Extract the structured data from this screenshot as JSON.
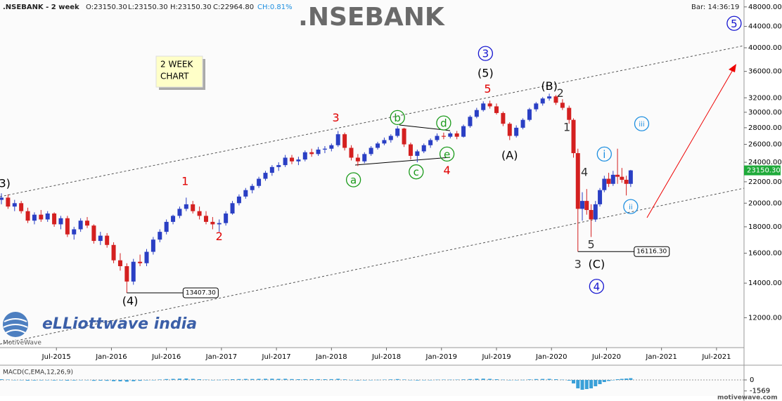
{
  "header": {
    "symbol": ".NSEBANK - 2 week",
    "open": "O:23150.30",
    "low": "L:23150.30",
    "high": "H:23150.30",
    "close": "C:22964.80",
    "change": "CH:0.81%",
    "bar_time": "Bar: 14:36:19"
  },
  "note_box": {
    "line1": "2 WEEK",
    "line2": "CHART"
  },
  "logo": {
    "brand": "eLLiottwave india",
    "platform": "MotiveWave",
    "site": "motivewave.com"
  },
  "chart_data": {
    "type": "candlestick",
    "title": ".NSEBANK",
    "log_y": true,
    "up_color": "#2a3fc4",
    "down_color": "#d42020",
    "x": [
      2015.0,
      2015.06,
      2015.12,
      2015.18,
      2015.24,
      2015.3,
      2015.36,
      2015.42,
      2015.48,
      2015.54,
      2015.6,
      2015.66,
      2015.72,
      2015.78,
      2015.84,
      2015.9,
      2015.96,
      2016.02,
      2016.08,
      2016.14,
      2016.2,
      2016.26,
      2016.32,
      2016.38,
      2016.44,
      2016.5,
      2016.56,
      2016.62,
      2016.68,
      2016.74,
      2016.8,
      2016.86,
      2016.92,
      2016.98,
      2017.04,
      2017.1,
      2017.16,
      2017.22,
      2017.28,
      2017.34,
      2017.4,
      2017.46,
      2017.52,
      2017.58,
      2017.64,
      2017.7,
      2017.76,
      2017.82,
      2017.88,
      2017.94,
      2018.0,
      2018.06,
      2018.12,
      2018.18,
      2018.24,
      2018.3,
      2018.36,
      2018.42,
      2018.48,
      2018.54,
      2018.6,
      2018.66,
      2018.72,
      2018.78,
      2018.84,
      2018.9,
      2018.96,
      2019.02,
      2019.08,
      2019.14,
      2019.2,
      2019.26,
      2019.32,
      2019.38,
      2019.44,
      2019.5,
      2019.56,
      2019.62,
      2019.68,
      2019.74,
      2019.8,
      2019.86,
      2019.92,
      2019.98,
      2020.04,
      2020.1,
      2020.16,
      2020.2,
      2020.24,
      2020.28,
      2020.32,
      2020.36,
      2020.4,
      2020.44,
      2020.48,
      2020.52,
      2020.56,
      2020.6,
      2020.64,
      2020.68,
      2020.72
    ],
    "open": [
      20300,
      20500,
      19700,
      20000,
      19300,
      18500,
      19000,
      18600,
      19100,
      18200,
      18700,
      17400,
      17800,
      18500,
      18100,
      16900,
      17300,
      16600,
      15500,
      15100,
      14100,
      15400,
      15300,
      16100,
      17000,
      17600,
      18400,
      18900,
      19500,
      19900,
      19300,
      18900,
      18400,
      18200,
      18300,
      19100,
      20000,
      20600,
      21200,
      21600,
      22300,
      22900,
      23500,
      23700,
      24500,
      24100,
      24300,
      25100,
      24900,
      25400,
      25500,
      25900,
      27200,
      25600,
      24500,
      24100,
      24900,
      25600,
      26100,
      26500,
      27000,
      27900,
      26000,
      24700,
      25200,
      25900,
      26500,
      27000,
      26900,
      27300,
      26900,
      28200,
      29400,
      30300,
      31200,
      30800,
      29900,
      28500,
      27000,
      28000,
      29000,
      30400,
      31200,
      31900,
      32200,
      31300,
      30600,
      29000,
      25000,
      19500,
      20200,
      19400,
      18600,
      19900,
      21200,
      22300,
      21800,
      22700,
      22500,
      22200,
      21800
    ],
    "high": [
      20900,
      20800,
      20300,
      20200,
      19600,
      19200,
      19400,
      19300,
      19200,
      18900,
      18900,
      18000,
      18700,
      18800,
      18200,
      17600,
      17500,
      16800,
      16000,
      15300,
      15600,
      15900,
      16300,
      17200,
      17800,
      18600,
      19000,
      19700,
      20500,
      20200,
      19700,
      19300,
      18800,
      18600,
      19300,
      20200,
      20800,
      21400,
      21800,
      22500,
      23100,
      23700,
      24000,
      24800,
      24800,
      24600,
      25300,
      25500,
      25700,
      25800,
      26100,
      27600,
      27400,
      25900,
      24900,
      25100,
      25800,
      26300,
      26800,
      27200,
      28200,
      28000,
      26200,
      25400,
      26100,
      26700,
      27300,
      27400,
      27500,
      27600,
      28400,
      29600,
      30600,
      31500,
      31600,
      31200,
      30100,
      28700,
      28300,
      29200,
      30600,
      31400,
      32100,
      32600,
      32400,
      31800,
      30900,
      29200,
      25500,
      21000,
      21300,
      19900,
      20200,
      21400,
      22600,
      22900,
      23100,
      25500,
      23400,
      22600,
      23200
    ],
    "low": [
      19900,
      19500,
      19300,
      19100,
      18300,
      18200,
      18400,
      18400,
      18000,
      17800,
      17200,
      17000,
      17600,
      17900,
      16700,
      16600,
      16400,
      15300,
      14800,
      13407.3,
      13900,
      15100,
      15100,
      15900,
      16800,
      17400,
      18200,
      18700,
      19300,
      19100,
      18600,
      18200,
      17800,
      17600,
      18100,
      19000,
      19800,
      20400,
      20900,
      21400,
      22100,
      22600,
      23100,
      23500,
      23800,
      23700,
      24100,
      24600,
      24700,
      25000,
      25200,
      25700,
      25300,
      24200,
      23600,
      23900,
      24700,
      25400,
      25900,
      26200,
      26800,
      25700,
      24300,
      24000,
      25000,
      25600,
      26300,
      26600,
      26700,
      26600,
      26800,
      28000,
      29200,
      30100,
      30500,
      29700,
      28200,
      26500,
      26800,
      27800,
      28800,
      30100,
      30900,
      31600,
      31000,
      30300,
      28500,
      24500,
      16116.3,
      18500,
      19000,
      17200,
      18400,
      19700,
      21000,
      21500,
      21600,
      21800,
      21900,
      20700,
      21500
    ],
    "close": [
      20500,
      19700,
      20000,
      19300,
      18500,
      19000,
      18600,
      19100,
      18200,
      18700,
      17400,
      17800,
      18500,
      18100,
      16900,
      17300,
      16600,
      15500,
      15100,
      14100,
      15400,
      15300,
      16100,
      17000,
      17600,
      18400,
      18900,
      19500,
      19900,
      19300,
      18900,
      18400,
      18200,
      18300,
      19100,
      20000,
      20600,
      21200,
      21600,
      22300,
      22900,
      23500,
      23700,
      24500,
      24100,
      24300,
      25100,
      24900,
      25400,
      25500,
      25900,
      27200,
      25600,
      24500,
      24100,
      24900,
      25600,
      26100,
      26500,
      27000,
      27900,
      26000,
      24700,
      25200,
      25900,
      26500,
      27000,
      26900,
      27300,
      26900,
      28200,
      29400,
      30300,
      31200,
      30800,
      29900,
      28500,
      27000,
      28000,
      29000,
      30400,
      31200,
      31900,
      32200,
      31300,
      30600,
      29000,
      25000,
      19500,
      20200,
      19400,
      18600,
      19900,
      21200,
      22300,
      21800,
      22700,
      22500,
      22200,
      21800,
      23150
    ],
    "xlim": [
      2015.0,
      2021.75
    ],
    "xticks": [
      {
        "value": 2015.5,
        "label": "Jul-2015"
      },
      {
        "value": 2016.0,
        "label": "Jan-2016"
      },
      {
        "value": 2016.5,
        "label": "Jul-2016"
      },
      {
        "value": 2017.0,
        "label": "Jan-2017"
      },
      {
        "value": 2017.5,
        "label": "Jul-2017"
      },
      {
        "value": 2018.0,
        "label": "Jan-2018"
      },
      {
        "value": 2018.5,
        "label": "Jul-2018"
      },
      {
        "value": 2019.0,
        "label": "Jan-2019"
      },
      {
        "value": 2019.5,
        "label": "Jul-2019"
      },
      {
        "value": 2020.0,
        "label": "Jan-2020"
      },
      {
        "value": 2020.5,
        "label": "Jul-2020"
      },
      {
        "value": 2021.0,
        "label": "Jan-2021"
      },
      {
        "value": 2021.5,
        "label": "Jul-2021"
      }
    ],
    "ylim": [
      10500,
      49500
    ],
    "yticks": [
      {
        "value": 12000,
        "label": "12000.00"
      },
      {
        "value": 14000,
        "label": "14000.00"
      },
      {
        "value": 16000,
        "label": "16000.00"
      },
      {
        "value": 18000,
        "label": "18000.00"
      },
      {
        "value": 20000,
        "label": "20000.00"
      },
      {
        "value": 22000,
        "label": "22000.00"
      },
      {
        "value": 24000,
        "label": "24000.00"
      },
      {
        "value": 26000,
        "label": "26000.00"
      },
      {
        "value": 28000,
        "label": "28000.00"
      },
      {
        "value": 30000,
        "label": "30000.00"
      },
      {
        "value": 32000,
        "label": "32000.00"
      },
      {
        "value": 36000,
        "label": "36000.00"
      },
      {
        "value": 40000,
        "label": "40000.00"
      },
      {
        "value": 44000,
        "label": "44000.00"
      },
      {
        "value": 48000,
        "label": "48000.00"
      }
    ],
    "last_price": {
      "value": 23150.3,
      "label": "23150.30",
      "color": "#1faa3a"
    },
    "price_labels": [
      {
        "x": 2016.14,
        "value": 13407.3,
        "label": "13407.30"
      },
      {
        "x": 2020.24,
        "value": 16116.3,
        "label": "16116.30"
      }
    ],
    "annotations": [
      {
        "text": "3)",
        "x": 2015.03,
        "y": 21800,
        "color": "#000000"
      },
      {
        "text": "(4)",
        "x": 2016.17,
        "y": 12900,
        "color": "#000000"
      },
      {
        "text": "1",
        "x": 2016.67,
        "y": 22000,
        "color": "#e00000"
      },
      {
        "text": "2",
        "x": 2016.98,
        "y": 17200,
        "color": "#e00000"
      },
      {
        "text": "3",
        "x": 2018.04,
        "y": 29200,
        "color": "#e00000"
      },
      {
        "text": "a",
        "x": 2018.2,
        "y": 22200,
        "color": "#1a9a1a",
        "style": "circle"
      },
      {
        "text": "b",
        "x": 2018.6,
        "y": 29300,
        "color": "#1a9a1a",
        "style": "circle"
      },
      {
        "text": "c",
        "x": 2018.77,
        "y": 23000,
        "color": "#1a9a1a",
        "style": "circle"
      },
      {
        "text": "d",
        "x": 2019.02,
        "y": 28600,
        "color": "#1a9a1a",
        "style": "circle"
      },
      {
        "text": "e",
        "x": 2019.05,
        "y": 24900,
        "color": "#1a9a1a",
        "style": "circle"
      },
      {
        "text": "4",
        "x": 2019.05,
        "y": 23100,
        "color": "#e00000"
      },
      {
        "text": "5",
        "x": 2019.42,
        "y": 33200,
        "color": "#e00000"
      },
      {
        "text": "(5)",
        "x": 2019.4,
        "y": 35600,
        "color": "#000000"
      },
      {
        "text": "3",
        "x": 2019.4,
        "y": 39000,
        "color": "#1515d0",
        "style": "circle"
      },
      {
        "text": "(A)",
        "x": 2019.62,
        "y": 24700,
        "color": "#000000"
      },
      {
        "text": "(B)",
        "x": 2019.98,
        "y": 33600,
        "color": "#000000"
      },
      {
        "text": "2",
        "x": 2020.08,
        "y": 32600,
        "color": "#333333"
      },
      {
        "text": "1",
        "x": 2020.14,
        "y": 28000,
        "color": "#333333"
      },
      {
        "text": "3",
        "x": 2020.24,
        "y": 15200,
        "color": "#333333"
      },
      {
        "text": "4",
        "x": 2020.3,
        "y": 22900,
        "color": "#333333"
      },
      {
        "text": "5",
        "x": 2020.36,
        "y": 16600,
        "color": "#333333"
      },
      {
        "text": "(C)",
        "x": 2020.41,
        "y": 15200,
        "color": "#000000"
      },
      {
        "text": "4",
        "x": 2020.41,
        "y": 13800,
        "color": "#1515d0",
        "style": "circle"
      },
      {
        "text": "i",
        "x": 2020.48,
        "y": 24900,
        "color": "#1e8fe0",
        "style": "circle"
      },
      {
        "text": "ii",
        "x": 2020.72,
        "y": 19700,
        "color": "#1e8fe0",
        "style": "circle"
      },
      {
        "text": "iii",
        "x": 2020.82,
        "y": 28500,
        "color": "#1e8fe0",
        "style": "circle"
      },
      {
        "text": "5",
        "x": 2021.66,
        "y": 44600,
        "color": "#1515d0",
        "style": "circle"
      }
    ],
    "macd": {
      "label": "MACD(C,EMA,12,26,9)",
      "ylim": [
        -2100,
        1900
      ],
      "yticks": [
        0,
        {
          "value": -1569,
          "label": "-1569"
        }
      ],
      "color": "#3aa0d8",
      "histogram": [
        100,
        50,
        0,
        -50,
        -100,
        -80,
        -60,
        -40,
        -80,
        -60,
        -100,
        -80,
        -40,
        -50,
        -120,
        -100,
        -120,
        -180,
        -200,
        -250,
        -180,
        -120,
        -60,
        0,
        60,
        120,
        150,
        180,
        200,
        150,
        100,
        50,
        0,
        20,
        60,
        100,
        120,
        140,
        130,
        150,
        160,
        170,
        150,
        160,
        120,
        100,
        110,
        100,
        110,
        100,
        110,
        160,
        80,
        -20,
        -80,
        -60,
        -20,
        20,
        50,
        80,
        120,
        60,
        -40,
        -80,
        -40,
        0,
        40,
        50,
        40,
        50,
        80,
        120,
        160,
        180,
        150,
        100,
        40,
        -40,
        -20,
        20,
        80,
        120,
        140,
        150,
        100,
        40,
        -100,
        -500,
        -1200,
        -1400,
        -1300,
        -1200,
        -900,
        -600,
        -300,
        -150,
        0,
        100,
        150,
        200,
        250
      ]
    }
  }
}
